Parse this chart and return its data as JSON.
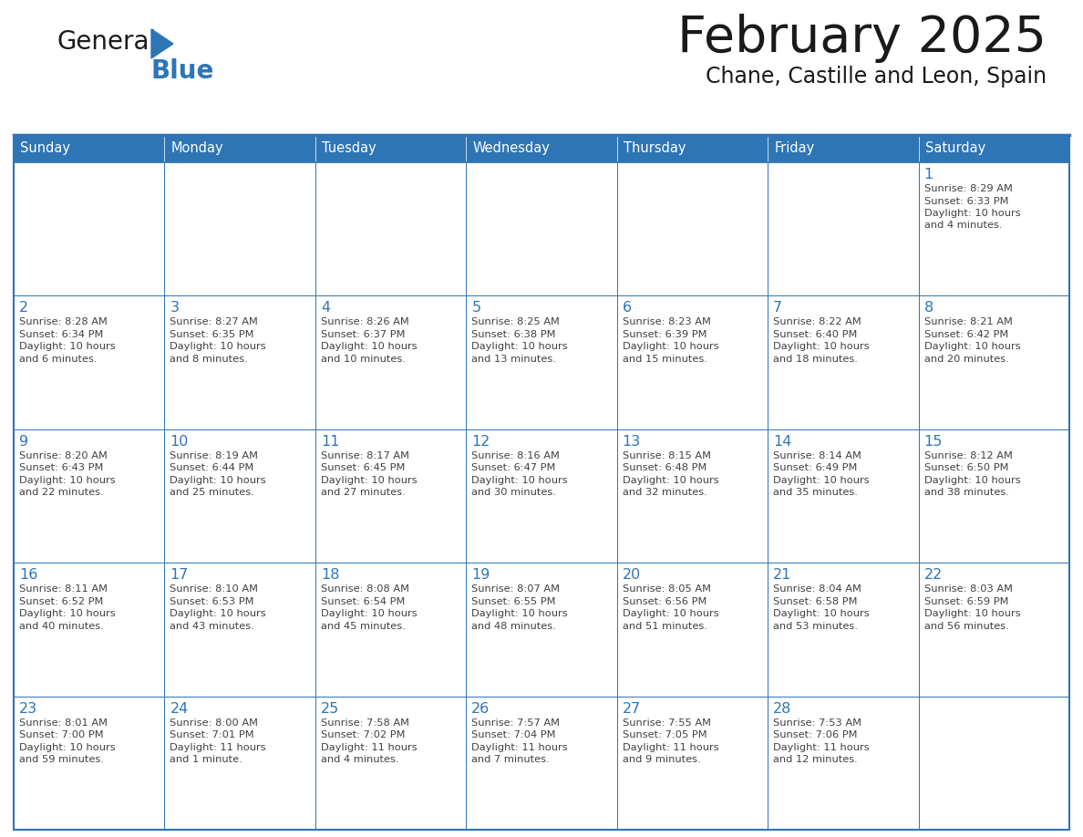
{
  "title": "February 2025",
  "subtitle": "Chane, Castille and Leon, Spain",
  "header_bg": "#2E75B6",
  "header_text_color": "#FFFFFF",
  "cell_bg": "#FFFFFF",
  "day_number_color": "#2E75B6",
  "info_text_color": "#404040",
  "border_color": "#2E75B6",
  "days_of_week": [
    "Sunday",
    "Monday",
    "Tuesday",
    "Wednesday",
    "Thursday",
    "Friday",
    "Saturday"
  ],
  "weeks": [
    [
      {
        "day": null,
        "info": ""
      },
      {
        "day": null,
        "info": ""
      },
      {
        "day": null,
        "info": ""
      },
      {
        "day": null,
        "info": ""
      },
      {
        "day": null,
        "info": ""
      },
      {
        "day": null,
        "info": ""
      },
      {
        "day": 1,
        "info": "Sunrise: 8:29 AM\nSunset: 6:33 PM\nDaylight: 10 hours\nand 4 minutes."
      }
    ],
    [
      {
        "day": 2,
        "info": "Sunrise: 8:28 AM\nSunset: 6:34 PM\nDaylight: 10 hours\nand 6 minutes."
      },
      {
        "day": 3,
        "info": "Sunrise: 8:27 AM\nSunset: 6:35 PM\nDaylight: 10 hours\nand 8 minutes."
      },
      {
        "day": 4,
        "info": "Sunrise: 8:26 AM\nSunset: 6:37 PM\nDaylight: 10 hours\nand 10 minutes."
      },
      {
        "day": 5,
        "info": "Sunrise: 8:25 AM\nSunset: 6:38 PM\nDaylight: 10 hours\nand 13 minutes."
      },
      {
        "day": 6,
        "info": "Sunrise: 8:23 AM\nSunset: 6:39 PM\nDaylight: 10 hours\nand 15 minutes."
      },
      {
        "day": 7,
        "info": "Sunrise: 8:22 AM\nSunset: 6:40 PM\nDaylight: 10 hours\nand 18 minutes."
      },
      {
        "day": 8,
        "info": "Sunrise: 8:21 AM\nSunset: 6:42 PM\nDaylight: 10 hours\nand 20 minutes."
      }
    ],
    [
      {
        "day": 9,
        "info": "Sunrise: 8:20 AM\nSunset: 6:43 PM\nDaylight: 10 hours\nand 22 minutes."
      },
      {
        "day": 10,
        "info": "Sunrise: 8:19 AM\nSunset: 6:44 PM\nDaylight: 10 hours\nand 25 minutes."
      },
      {
        "day": 11,
        "info": "Sunrise: 8:17 AM\nSunset: 6:45 PM\nDaylight: 10 hours\nand 27 minutes."
      },
      {
        "day": 12,
        "info": "Sunrise: 8:16 AM\nSunset: 6:47 PM\nDaylight: 10 hours\nand 30 minutes."
      },
      {
        "day": 13,
        "info": "Sunrise: 8:15 AM\nSunset: 6:48 PM\nDaylight: 10 hours\nand 32 minutes."
      },
      {
        "day": 14,
        "info": "Sunrise: 8:14 AM\nSunset: 6:49 PM\nDaylight: 10 hours\nand 35 minutes."
      },
      {
        "day": 15,
        "info": "Sunrise: 8:12 AM\nSunset: 6:50 PM\nDaylight: 10 hours\nand 38 minutes."
      }
    ],
    [
      {
        "day": 16,
        "info": "Sunrise: 8:11 AM\nSunset: 6:52 PM\nDaylight: 10 hours\nand 40 minutes."
      },
      {
        "day": 17,
        "info": "Sunrise: 8:10 AM\nSunset: 6:53 PM\nDaylight: 10 hours\nand 43 minutes."
      },
      {
        "day": 18,
        "info": "Sunrise: 8:08 AM\nSunset: 6:54 PM\nDaylight: 10 hours\nand 45 minutes."
      },
      {
        "day": 19,
        "info": "Sunrise: 8:07 AM\nSunset: 6:55 PM\nDaylight: 10 hours\nand 48 minutes."
      },
      {
        "day": 20,
        "info": "Sunrise: 8:05 AM\nSunset: 6:56 PM\nDaylight: 10 hours\nand 51 minutes."
      },
      {
        "day": 21,
        "info": "Sunrise: 8:04 AM\nSunset: 6:58 PM\nDaylight: 10 hours\nand 53 minutes."
      },
      {
        "day": 22,
        "info": "Sunrise: 8:03 AM\nSunset: 6:59 PM\nDaylight: 10 hours\nand 56 minutes."
      }
    ],
    [
      {
        "day": 23,
        "info": "Sunrise: 8:01 AM\nSunset: 7:00 PM\nDaylight: 10 hours\nand 59 minutes."
      },
      {
        "day": 24,
        "info": "Sunrise: 8:00 AM\nSunset: 7:01 PM\nDaylight: 11 hours\nand 1 minute."
      },
      {
        "day": 25,
        "info": "Sunrise: 7:58 AM\nSunset: 7:02 PM\nDaylight: 11 hours\nand 4 minutes."
      },
      {
        "day": 26,
        "info": "Sunrise: 7:57 AM\nSunset: 7:04 PM\nDaylight: 11 hours\nand 7 minutes."
      },
      {
        "day": 27,
        "info": "Sunrise: 7:55 AM\nSunset: 7:05 PM\nDaylight: 11 hours\nand 9 minutes."
      },
      {
        "day": 28,
        "info": "Sunrise: 7:53 AM\nSunset: 7:06 PM\nDaylight: 11 hours\nand 12 minutes."
      },
      {
        "day": null,
        "info": ""
      }
    ]
  ],
  "logo_color_general": "#1a1a1a",
  "logo_color_blue": "#2E75B6",
  "logo_triangle_color": "#2E75B6",
  "title_color": "#1a1a1a",
  "subtitle_color": "#1a1a1a"
}
